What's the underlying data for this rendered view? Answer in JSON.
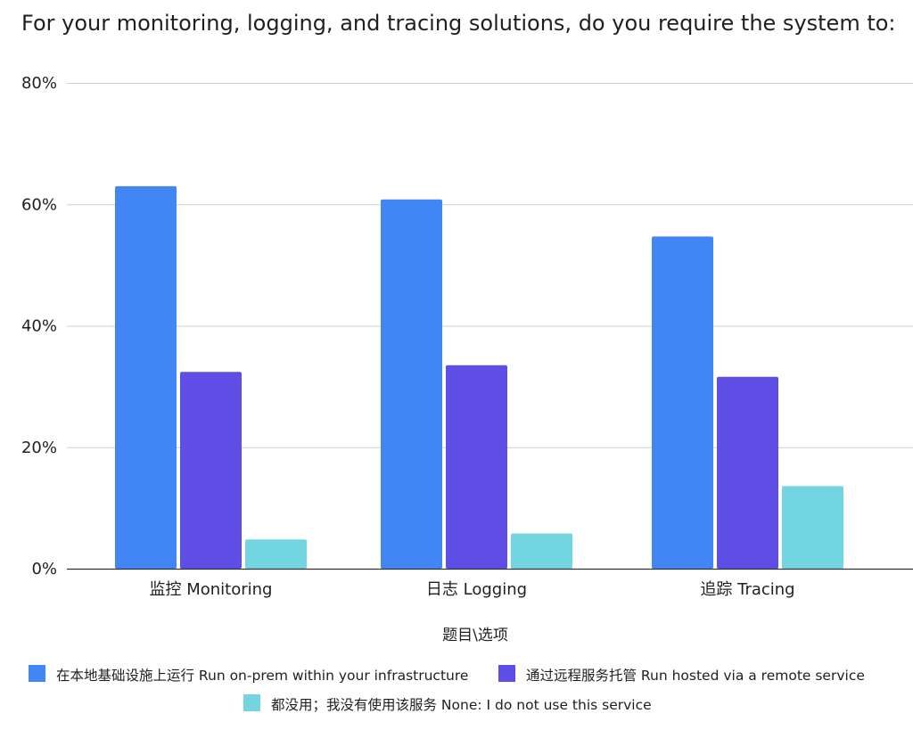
{
  "chart_data": {
    "type": "bar",
    "title": "For your monitoring, logging, and tracing solutions, do you require the system to:",
    "xlabel": "题目\\选项",
    "ylabel": "",
    "ylim": [
      0,
      80
    ],
    "yticks": [
      0,
      20,
      40,
      60,
      80
    ],
    "ytick_labels": [
      "0%",
      "20%",
      "40%",
      "60%",
      "80%"
    ],
    "grid": true,
    "legend_position": "bottom",
    "categories": [
      "监控 Monitoring",
      "日志 Logging",
      "追踪 Tracing"
    ],
    "series": [
      {
        "name": "在本地基础设施上运行 Run on-prem within your infrastructure",
        "color": "#4285f4",
        "values": [
          63,
          60.8,
          54.7
        ]
      },
      {
        "name": "通过远程服务托管 Run hosted via a remote service",
        "color": "#5e4ee6",
        "values": [
          32.4,
          33.5,
          31.6
        ]
      },
      {
        "name": "都没用；我没有使用该服务 None: I do not use this service",
        "color": "#72d5df",
        "values": [
          4.8,
          5.8,
          13.6
        ]
      }
    ]
  }
}
